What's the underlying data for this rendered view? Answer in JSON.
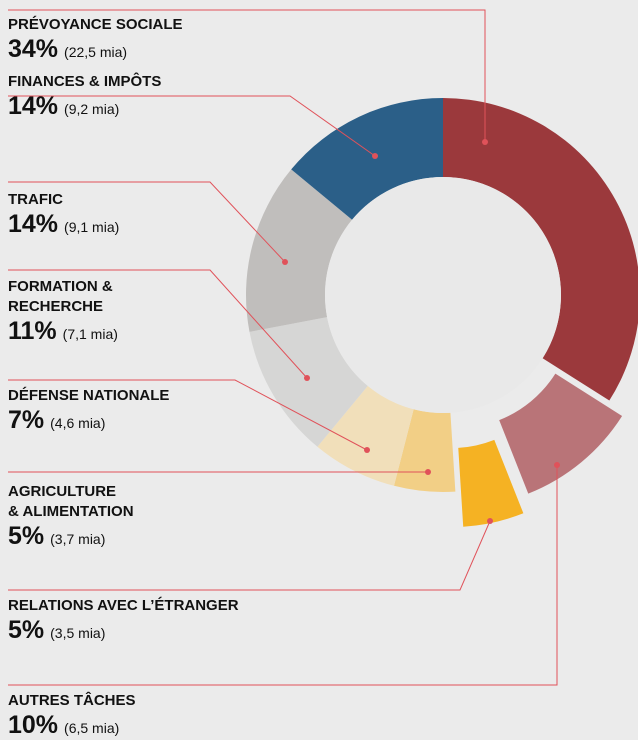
{
  "chart_data": {
    "type": "donut",
    "categories": [
      "PRÉVOYANCE SOCIALE",
      "AUTRES TÂCHES",
      "RELATIONS AVEC L’ÉTRANGER",
      "AGRICULTURE\n& ALIMENTATION",
      "DÉFENSE NATIONALE",
      "FORMATION &\nRECHERCHE",
      "TRAFIC",
      "FINANCES & IMPÔTS"
    ],
    "values": [
      34,
      10,
      5,
      5,
      7,
      11,
      14,
      14
    ],
    "value_labels": [
      "34%",
      "10%",
      "5%",
      "5%",
      "7%",
      "11%",
      "14%",
      "14%"
    ],
    "amounts": [
      22.5,
      6.5,
      3.5,
      3.7,
      4.6,
      7.1,
      9.1,
      9.2
    ],
    "amount_labels": [
      "(22,5 mia)",
      "(6,5 mia)",
      "(3,5 mia)",
      "(3,7 mia)",
      "(4,6 mia)",
      "(7,1 mia)",
      "(9,1 mia)",
      "(9,2 mia)"
    ],
    "colors": [
      "#9b393c",
      "#b97478",
      "#f5b223",
      "#f2cf86",
      "#f1dfba",
      "#d6d6d5",
      "#c0bebc",
      "#2b5f88"
    ]
  }
}
